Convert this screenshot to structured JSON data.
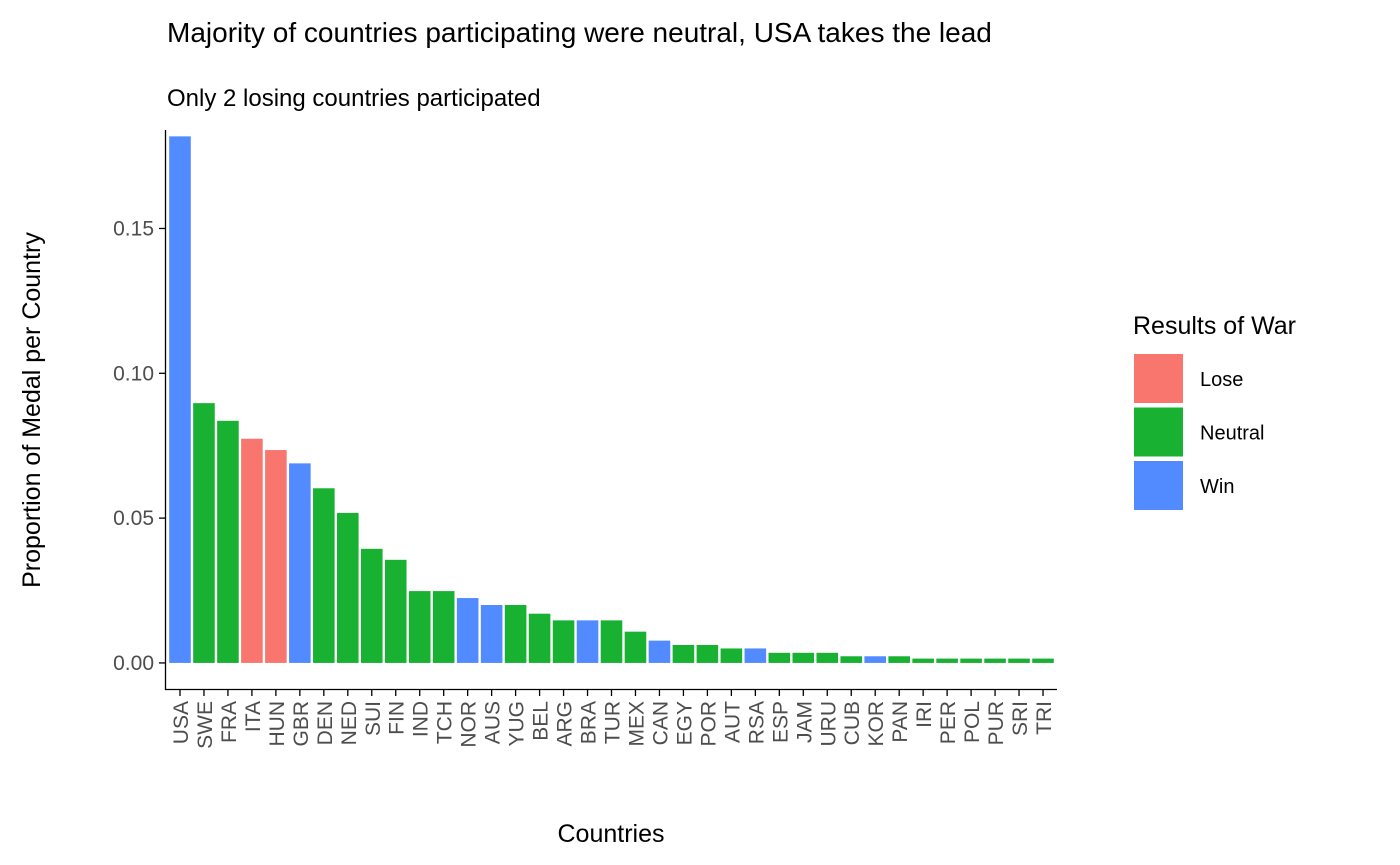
{
  "chart_data": {
    "type": "bar",
    "title": "Majority of countries participating were neutral, USA takes the lead",
    "subtitle": "Only 2 losing countries participated",
    "xlabel": "Countries",
    "ylabel": "Proportion of Medal per Country",
    "ylim": [
      -0.009,
      0.184
    ],
    "yticks": [
      "0.00",
      "0.05",
      "0.10",
      "0.15"
    ],
    "ytick_values": [
      0,
      0.05,
      0.1,
      0.15
    ],
    "grid": false,
    "legend": {
      "title": "Results of War",
      "position": "right",
      "entries": [
        {
          "label": "Lose",
          "color": "#F8766D"
        },
        {
          "label": "Neutral",
          "color": "#19B132"
        },
        {
          "label": "Win",
          "color": "#528AFF"
        }
      ]
    },
    "categories": [
      "USA",
      "SWE",
      "FRA",
      "ITA",
      "HUN",
      "GBR",
      "DEN",
      "NED",
      "SUI",
      "FIN",
      "IND",
      "TCH",
      "NOR",
      "AUS",
      "YUG",
      "BEL",
      "ARG",
      "BRA",
      "TUR",
      "MEX",
      "CAN",
      "EGY",
      "POR",
      "AUT",
      "RSA",
      "ESP",
      "JAM",
      "URU",
      "CUB",
      "KOR",
      "PAN",
      "IRI",
      "PER",
      "POL",
      "PUR",
      "SRI",
      "TRI"
    ],
    "values": [
      0.1818,
      0.0897,
      0.0836,
      0.0774,
      0.0735,
      0.0689,
      0.0603,
      0.0518,
      0.0394,
      0.0356,
      0.0248,
      0.0248,
      0.0224,
      0.02,
      0.02,
      0.017,
      0.0147,
      0.0147,
      0.0147,
      0.0108,
      0.0077,
      0.0062,
      0.0062,
      0.005,
      0.005,
      0.0035,
      0.0035,
      0.0035,
      0.0023,
      0.0023,
      0.0023,
      0.0015,
      0.0015,
      0.0015,
      0.0015,
      0.0015,
      0.0015
    ],
    "groups": [
      "Win",
      "Neutral",
      "Neutral",
      "Lose",
      "Lose",
      "Win",
      "Neutral",
      "Neutral",
      "Neutral",
      "Neutral",
      "Neutral",
      "Neutral",
      "Win",
      "Win",
      "Neutral",
      "Neutral",
      "Neutral",
      "Win",
      "Neutral",
      "Neutral",
      "Win",
      "Neutral",
      "Neutral",
      "Neutral",
      "Win",
      "Neutral",
      "Neutral",
      "Neutral",
      "Neutral",
      "Win",
      "Neutral",
      "Neutral",
      "Neutral",
      "Neutral",
      "Neutral",
      "Neutral",
      "Neutral"
    ]
  }
}
